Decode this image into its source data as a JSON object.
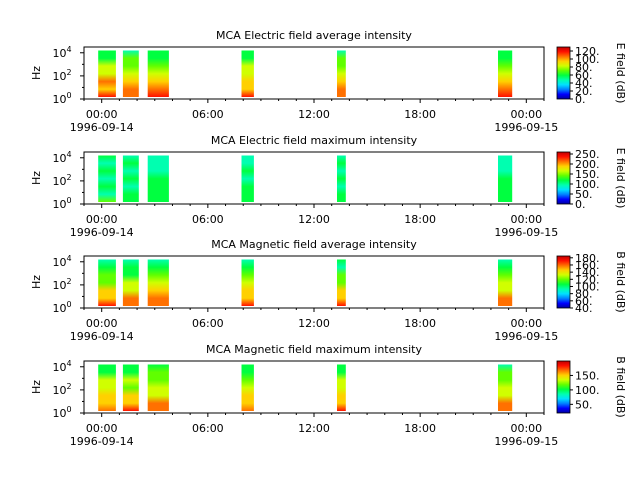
{
  "figure": {
    "date_left": "1996-09-14",
    "date_right": "1996-09-15"
  },
  "colormap": [
    "#0000a0",
    "#0000ff",
    "#0080ff",
    "#00e0ff",
    "#00ffb0",
    "#00ff40",
    "#60ff00",
    "#d0ff00",
    "#ffd000",
    "#ff7000",
    "#ff1000",
    "#c00000"
  ],
  "chart_data": [
    {
      "type": "heatmap",
      "title": "MCA  Electric field average intensity",
      "ylabel": "Hz",
      "colorbar_label": "E field (dB)",
      "colorbar_ticks": [
        "0.",
        "20.",
        "40.",
        "60.",
        "80.",
        "100.",
        "120."
      ],
      "colorbar_range": [
        0,
        130
      ],
      "y_tick_labels": [
        "10",
        "10",
        "10"
      ],
      "y_tick_exponents": [
        "0",
        "2",
        "4"
      ],
      "ylim_log10": [
        0,
        4.5
      ],
      "x_tick_labels": [
        "00:00",
        "06:00",
        "12:00",
        "18:00",
        "00:00"
      ],
      "xlim_hours": [
        -1,
        25
      ],
      "data_blocks_hours": [
        [
          -0.2,
          0.8
        ],
        [
          1.2,
          2.1
        ],
        [
          2.6,
          3.8
        ],
        [
          7.9,
          8.6
        ],
        [
          13.3,
          13.8
        ],
        [
          22.4,
          23.2
        ]
      ],
      "spectrum_db": {
        "low_freq": 110,
        "high_freq": 55
      }
    },
    {
      "type": "heatmap",
      "title": "MCA  Electric field maximum intensity",
      "ylabel": "Hz",
      "colorbar_label": "E field (dB)",
      "colorbar_ticks": [
        "0.",
        "50.",
        "100.",
        "150.",
        "200.",
        "250."
      ],
      "colorbar_range": [
        0,
        260
      ],
      "y_tick_labels": [
        "10",
        "10",
        "10"
      ],
      "y_tick_exponents": [
        "0",
        "2",
        "4"
      ],
      "ylim_log10": [
        0,
        4.5
      ],
      "x_tick_labels": [
        "00:00",
        "06:00",
        "12:00",
        "18:00",
        "00:00"
      ],
      "xlim_hours": [
        -1,
        25
      ],
      "data_blocks_hours": [
        [
          -0.2,
          0.8
        ],
        [
          1.2,
          2.1
        ],
        [
          2.6,
          3.8
        ],
        [
          7.9,
          8.6
        ],
        [
          13.3,
          13.8
        ],
        [
          22.4,
          23.2
        ]
      ],
      "spectrum_db": {
        "low_freq": 120,
        "high_freq": 100
      }
    },
    {
      "type": "heatmap",
      "title": "MCA  Magnetic field average intensity",
      "ylabel": "Hz",
      "colorbar_label": "B field (dB)",
      "colorbar_ticks": [
        "40.",
        "60.",
        "80.",
        "100.",
        "120.",
        "140.",
        "160.",
        "180."
      ],
      "colorbar_range": [
        40,
        185
      ],
      "y_tick_labels": [
        "10",
        "10",
        "10"
      ],
      "y_tick_exponents": [
        "0",
        "2",
        "4"
      ],
      "ylim_log10": [
        0,
        4.5
      ],
      "x_tick_labels": [
        "00:00",
        "06:00",
        "12:00",
        "18:00",
        "00:00"
      ],
      "xlim_hours": [
        -1,
        25
      ],
      "data_blocks_hours": [
        [
          -0.2,
          0.8
        ],
        [
          1.2,
          2.1
        ],
        [
          2.6,
          3.8
        ],
        [
          7.9,
          8.6
        ],
        [
          13.3,
          13.8
        ],
        [
          22.4,
          23.2
        ]
      ],
      "spectrum_db": {
        "low_freq": 160,
        "high_freq": 95
      }
    },
    {
      "type": "heatmap",
      "title": "MCA  Magnetic field maximum intensity",
      "ylabel": "Hz",
      "colorbar_label": "B field (dB)",
      "colorbar_ticks": [
        "50.",
        "100.",
        "150."
      ],
      "colorbar_range": [
        20,
        200
      ],
      "y_tick_labels": [
        "10",
        "10",
        "10"
      ],
      "y_tick_exponents": [
        "0",
        "2",
        "4"
      ],
      "ylim_log10": [
        0,
        4.5
      ],
      "x_tick_labels": [
        "00:00",
        "06:00",
        "12:00",
        "18:00",
        "00:00"
      ],
      "xlim_hours": [
        -1,
        25
      ],
      "data_blocks_hours": [
        [
          -0.2,
          0.8
        ],
        [
          1.2,
          2.1
        ],
        [
          2.6,
          3.8
        ],
        [
          7.9,
          8.6
        ],
        [
          13.3,
          13.8
        ],
        [
          22.4,
          23.2
        ]
      ],
      "spectrum_db": {
        "low_freq": 165,
        "high_freq": 100
      }
    }
  ]
}
